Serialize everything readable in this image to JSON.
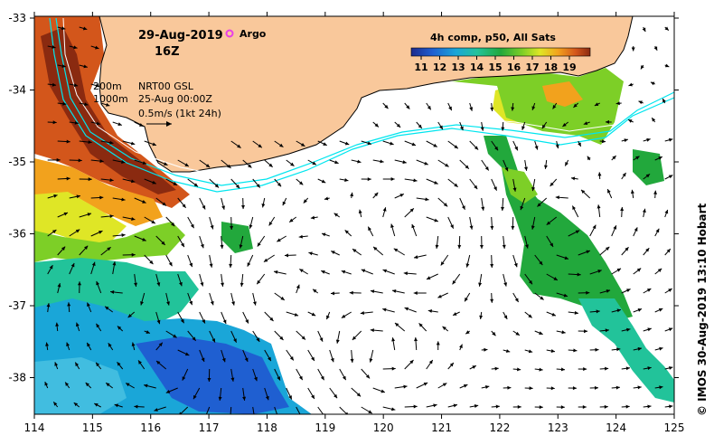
{
  "header": {
    "date": "29-Aug-2019",
    "time": "16Z",
    "argo_label": "Argo"
  },
  "legend": {
    "line1": "200m",
    "line2": "1000m",
    "product": "NRT00 GSL",
    "ref_time": "25-Aug 00:00Z",
    "scale": "0.5m/s (1kt 24h)"
  },
  "colorbar": {
    "title": "4h comp, p50, All Sats",
    "ticks": [
      "11",
      "12",
      "13",
      "14",
      "15",
      "16",
      "17",
      "18",
      "19"
    ],
    "colors": [
      "#1e2a8c",
      "#1f5fd1",
      "#1aa6d8",
      "#22c39a",
      "#22a83c",
      "#7dcf27",
      "#dfe626",
      "#f2a21d",
      "#d3561b",
      "#8a2a10"
    ]
  },
  "axes": {
    "x_ticks": [
      "114",
      "115",
      "116",
      "117",
      "118",
      "119",
      "120",
      "121",
      "122",
      "123",
      "124",
      "125"
    ],
    "y_ticks": [
      "-33",
      "-34",
      "-35",
      "-36",
      "-37",
      "-38"
    ]
  },
  "credit": "© IMOS 30-Aug-2019 13:10 Hobart",
  "colors": {
    "land": "#f9c89b",
    "isobath_200": "#ffffff",
    "isobath_1000": "#00e5ee",
    "argo": "#e83ee8"
  }
}
